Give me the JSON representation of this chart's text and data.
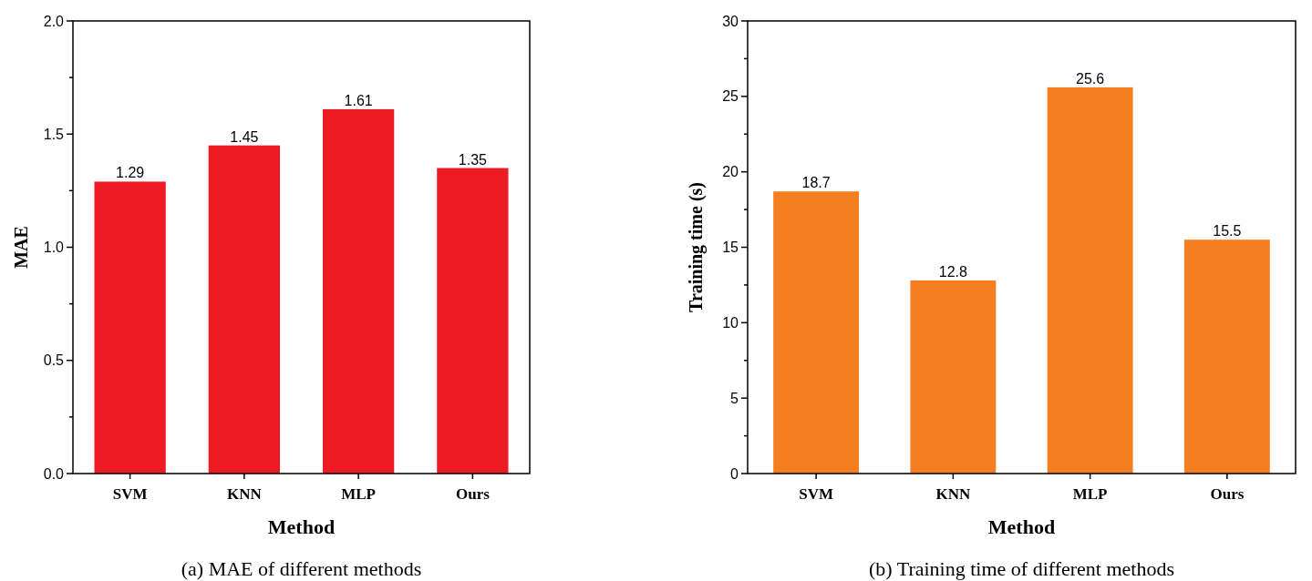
{
  "chart_data": [
    {
      "type": "bar",
      "title": "(a) MAE of different methods",
      "xlabel": "Method",
      "ylabel": "MAE",
      "categories": [
        "SVM",
        "KNN",
        "MLP",
        "Ours"
      ],
      "values": [
        1.29,
        1.45,
        1.61,
        1.35
      ],
      "color": "#ed1c24",
      "data_labels": true,
      "ylim": [
        0,
        2
      ],
      "yticks": [
        {
          "value": 0,
          "label": "0.0"
        },
        {
          "value": 0.25,
          "label": null
        },
        {
          "value": 0.5,
          "label": "0.5"
        },
        {
          "value": 0.75,
          "label": null
        },
        {
          "value": 1,
          "label": "1.0"
        },
        {
          "value": 1.25,
          "label": null
        },
        {
          "value": 1.5,
          "label": "1.5"
        },
        {
          "value": 1.75,
          "label": null
        },
        {
          "value": 2,
          "label": "2.0"
        }
      ]
    },
    {
      "type": "bar",
      "title": "(b) Training time of different methods",
      "xlabel": "Method",
      "ylabel": "Training time (s)",
      "categories": [
        "SVM",
        "KNN",
        "MLP",
        "Ours"
      ],
      "values": [
        18.7,
        12.8,
        25.6,
        15.5
      ],
      "color": "#f47f20",
      "data_labels": true,
      "ylim": [
        0,
        30
      ],
      "yticks": [
        0,
        {
          "value": 2.5,
          "label": null
        },
        5,
        {
          "value": 7.5,
          "label": null
        },
        10,
        {
          "value": 12.5,
          "label": null
        },
        15,
        {
          "value": 17.5,
          "label": null
        },
        20,
        {
          "value": 22.5,
          "label": null
        },
        25,
        {
          "value": 27.5,
          "label": null
        },
        30
      ]
    }
  ]
}
